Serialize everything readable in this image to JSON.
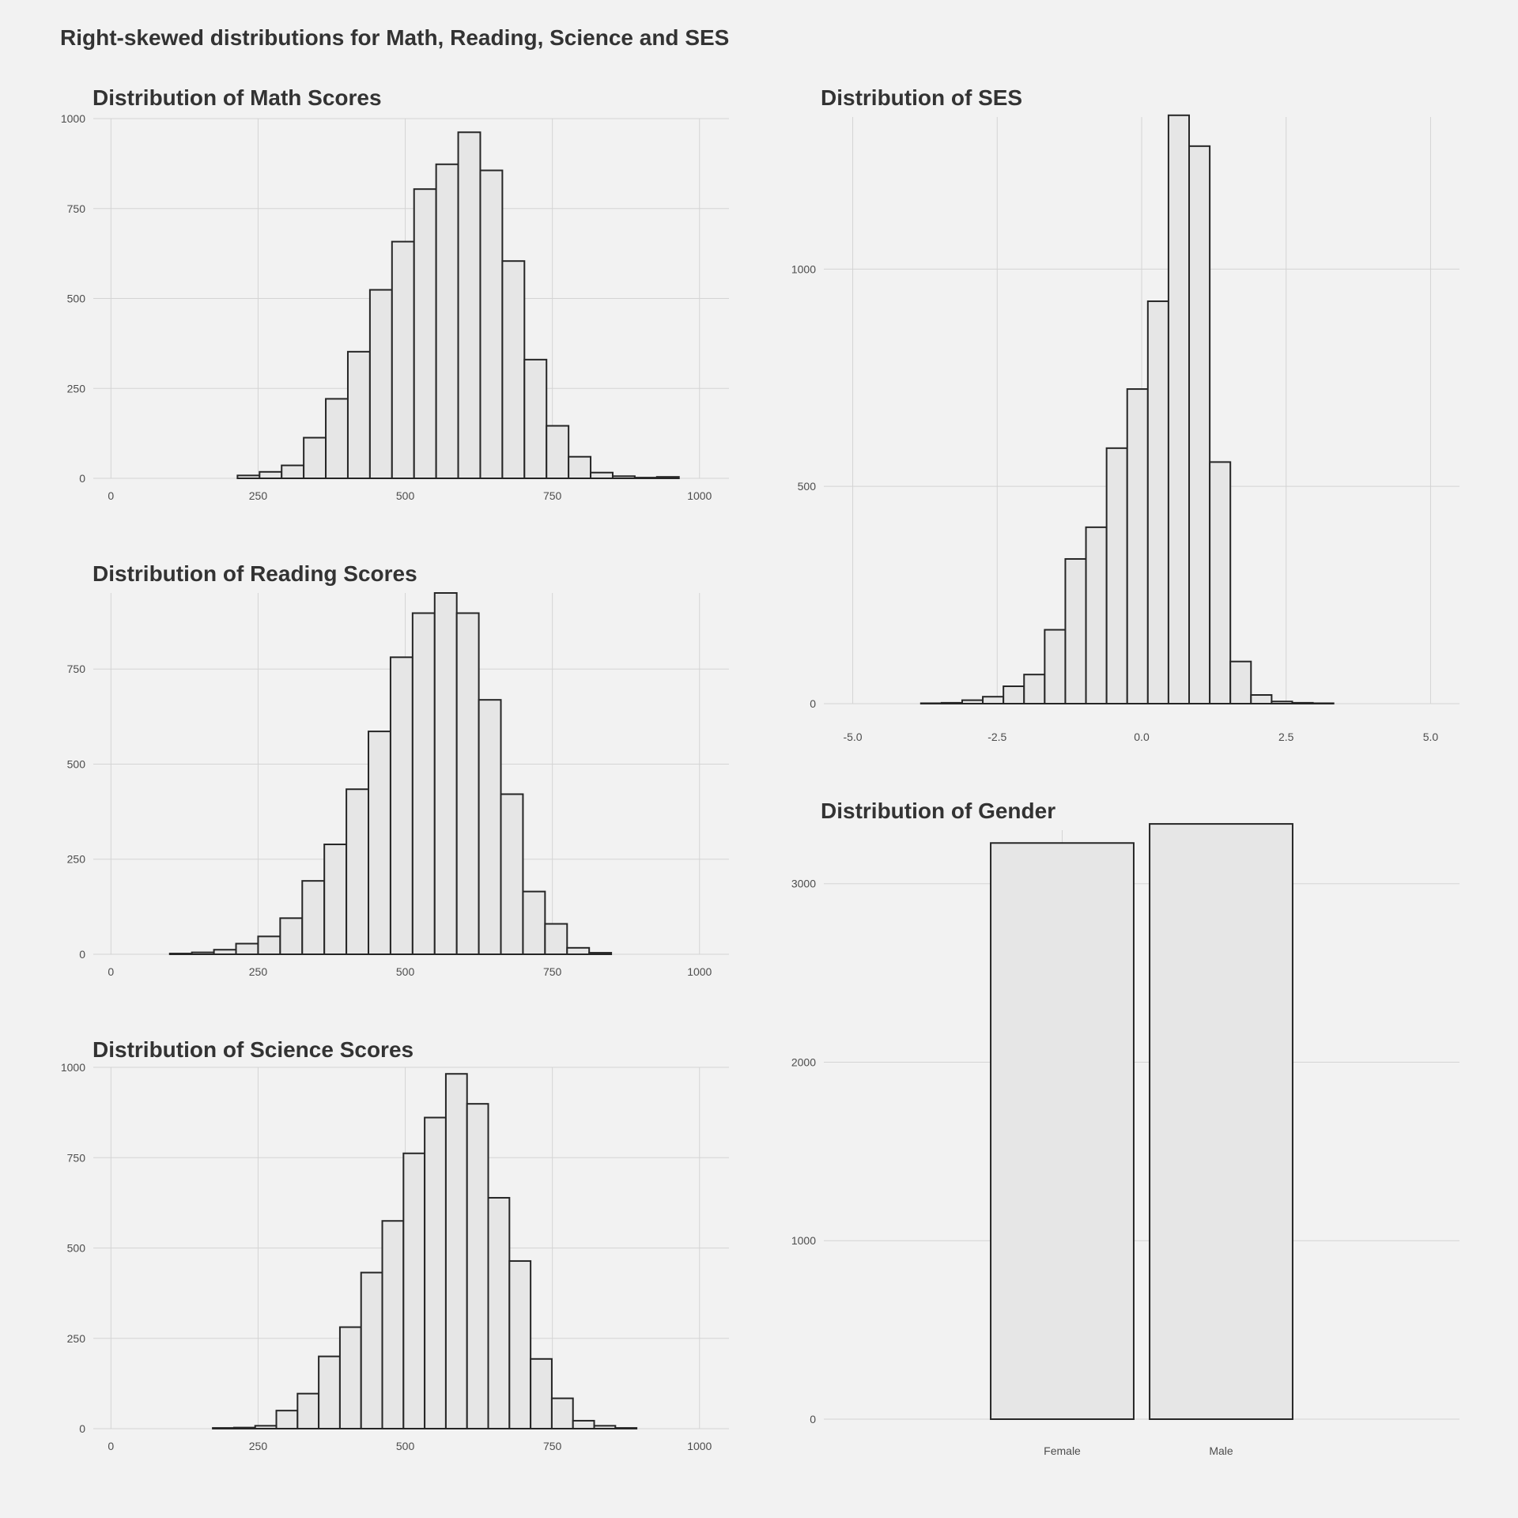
{
  "page": {
    "title": "Right-skewed distributions for Math, Reading, Science and SES"
  },
  "chart_data": [
    {
      "id": "math",
      "type": "bar",
      "title": "Distribution of Math Scores",
      "xlabel": "",
      "ylabel": "",
      "xlim": [
        -30,
        1050
      ],
      "ylim": [
        0,
        1000
      ],
      "xticks": [
        0,
        250,
        500,
        750,
        1000
      ],
      "yticks": [
        0,
        250,
        500,
        750,
        1000
      ],
      "tick_labels_x": [
        "0",
        "250",
        "500",
        "750",
        "1000"
      ],
      "tick_labels_y": [
        "0",
        "250",
        "500",
        "750",
        "1000"
      ],
      "bin_width": 37.5,
      "bins": [
        {
          "x0": 215,
          "count": 8
        },
        {
          "x0": 252.5,
          "count": 18
        },
        {
          "x0": 290,
          "count": 36
        },
        {
          "x0": 327.5,
          "count": 113
        },
        {
          "x0": 365,
          "count": 221
        },
        {
          "x0": 402.5,
          "count": 352
        },
        {
          "x0": 440,
          "count": 524
        },
        {
          "x0": 477.5,
          "count": 658
        },
        {
          "x0": 515,
          "count": 804
        },
        {
          "x0": 552.5,
          "count": 873
        },
        {
          "x0": 590,
          "count": 962
        },
        {
          "x0": 627.5,
          "count": 856
        },
        {
          "x0": 665,
          "count": 604
        },
        {
          "x0": 702.5,
          "count": 330
        },
        {
          "x0": 740,
          "count": 146
        },
        {
          "x0": 777.5,
          "count": 60
        },
        {
          "x0": 815,
          "count": 16
        },
        {
          "x0": 852.5,
          "count": 6
        },
        {
          "x0": 890,
          "count": 2
        },
        {
          "x0": 927.5,
          "count": 4
        }
      ]
    },
    {
      "id": "reading",
      "type": "bar",
      "title": "Distribution of Reading Scores",
      "xlabel": "",
      "ylabel": "",
      "xlim": [
        -30,
        1050
      ],
      "ylim": [
        0,
        950
      ],
      "xticks": [
        0,
        250,
        500,
        750,
        1000
      ],
      "yticks": [
        0,
        250,
        500,
        750
      ],
      "tick_labels_x": [
        "0",
        "250",
        "500",
        "750",
        "1000"
      ],
      "tick_labels_y": [
        "0",
        "250",
        "500",
        "750"
      ],
      "bin_width": 37.5,
      "bins": [
        {
          "x0": 100,
          "count": 2
        },
        {
          "x0": 137.5,
          "count": 5
        },
        {
          "x0": 175,
          "count": 12
        },
        {
          "x0": 212.5,
          "count": 28
        },
        {
          "x0": 250,
          "count": 47
        },
        {
          "x0": 287.5,
          "count": 95
        },
        {
          "x0": 325,
          "count": 193
        },
        {
          "x0": 362.5,
          "count": 289
        },
        {
          "x0": 400,
          "count": 434
        },
        {
          "x0": 437.5,
          "count": 586
        },
        {
          "x0": 475,
          "count": 781
        },
        {
          "x0": 512.5,
          "count": 897
        },
        {
          "x0": 550,
          "count": 950
        },
        {
          "x0": 587.5,
          "count": 897
        },
        {
          "x0": 625,
          "count": 669
        },
        {
          "x0": 662.5,
          "count": 421
        },
        {
          "x0": 700,
          "count": 165
        },
        {
          "x0": 737.5,
          "count": 80
        },
        {
          "x0": 775,
          "count": 17
        },
        {
          "x0": 812.5,
          "count": 4
        }
      ]
    },
    {
      "id": "science",
      "type": "bar",
      "title": "Distribution of Science Scores",
      "xlabel": "",
      "ylabel": "",
      "xlim": [
        -30,
        1050
      ],
      "ylim": [
        0,
        1000
      ],
      "xticks": [
        0,
        250,
        500,
        750,
        1000
      ],
      "yticks": [
        0,
        250,
        500,
        750,
        1000
      ],
      "tick_labels_x": [
        "0",
        "250",
        "500",
        "750",
        "1000"
      ],
      "tick_labels_y": [
        "0",
        "250",
        "500",
        "750",
        "1000"
      ],
      "bin_width": 36,
      "bins": [
        {
          "x0": 173,
          "count": 2
        },
        {
          "x0": 209,
          "count": 3
        },
        {
          "x0": 245,
          "count": 8
        },
        {
          "x0": 281,
          "count": 50
        },
        {
          "x0": 317,
          "count": 97
        },
        {
          "x0": 353,
          "count": 200
        },
        {
          "x0": 389,
          "count": 281
        },
        {
          "x0": 425,
          "count": 432
        },
        {
          "x0": 461,
          "count": 575
        },
        {
          "x0": 497,
          "count": 762
        },
        {
          "x0": 533,
          "count": 861
        },
        {
          "x0": 569,
          "count": 982
        },
        {
          "x0": 605,
          "count": 899
        },
        {
          "x0": 641,
          "count": 639
        },
        {
          "x0": 677,
          "count": 464
        },
        {
          "x0": 713,
          "count": 193
        },
        {
          "x0": 749,
          "count": 84
        },
        {
          "x0": 785,
          "count": 22
        },
        {
          "x0": 821,
          "count": 8
        },
        {
          "x0": 857,
          "count": 2
        }
      ]
    },
    {
      "id": "ses",
      "type": "bar",
      "title": "Distribution of SES",
      "xlabel": "",
      "ylabel": "",
      "xlim": [
        -5.5,
        5.5
      ],
      "ylim": [
        0,
        1350
      ],
      "xticks": [
        -5,
        -2.5,
        0,
        2.5,
        5
      ],
      "yticks": [
        0,
        500,
        1000
      ],
      "tick_labels_x": [
        "-5.0",
        "-2.5",
        "0.0",
        "2.5",
        "5.0"
      ],
      "tick_labels_y": [
        "0",
        "500",
        "1000"
      ],
      "bin_width": 0.357,
      "bins": [
        {
          "x0": -3.82,
          "count": 1
        },
        {
          "x0": -3.463,
          "count": 2
        },
        {
          "x0": -3.106,
          "count": 8
        },
        {
          "x0": -2.749,
          "count": 16
        },
        {
          "x0": -2.392,
          "count": 40
        },
        {
          "x0": -2.035,
          "count": 67
        },
        {
          "x0": -1.678,
          "count": 170
        },
        {
          "x0": -1.321,
          "count": 333
        },
        {
          "x0": -0.964,
          "count": 406
        },
        {
          "x0": -0.607,
          "count": 588
        },
        {
          "x0": -0.25,
          "count": 724
        },
        {
          "x0": 0.107,
          "count": 926
        },
        {
          "x0": 0.464,
          "count": 1354
        },
        {
          "x0": 0.821,
          "count": 1283
        },
        {
          "x0": 1.178,
          "count": 556
        },
        {
          "x0": 1.535,
          "count": 97
        },
        {
          "x0": 1.892,
          "count": 20
        },
        {
          "x0": 2.249,
          "count": 5
        },
        {
          "x0": 2.606,
          "count": 2
        },
        {
          "x0": 2.963,
          "count": 1
        }
      ]
    },
    {
      "id": "gender",
      "type": "bar",
      "title": "Distribution of Gender",
      "xlabel": "",
      "ylabel": "",
      "categories": [
        "Female",
        "Male"
      ],
      "values": [
        3228,
        3335
      ],
      "ylim": [
        0,
        3300
      ],
      "yticks": [
        0,
        1000,
        2000,
        3000
      ],
      "tick_labels_y": [
        "0",
        "1000",
        "2000",
        "3000"
      ]
    }
  ],
  "colors": {
    "background": "#f2f2f2",
    "bar_fill": "#e6e6e6",
    "bar_stroke": "#262626",
    "grid": "#d4d4d4",
    "title_text": "#333333",
    "tick_text": "#4d4d4d"
  }
}
